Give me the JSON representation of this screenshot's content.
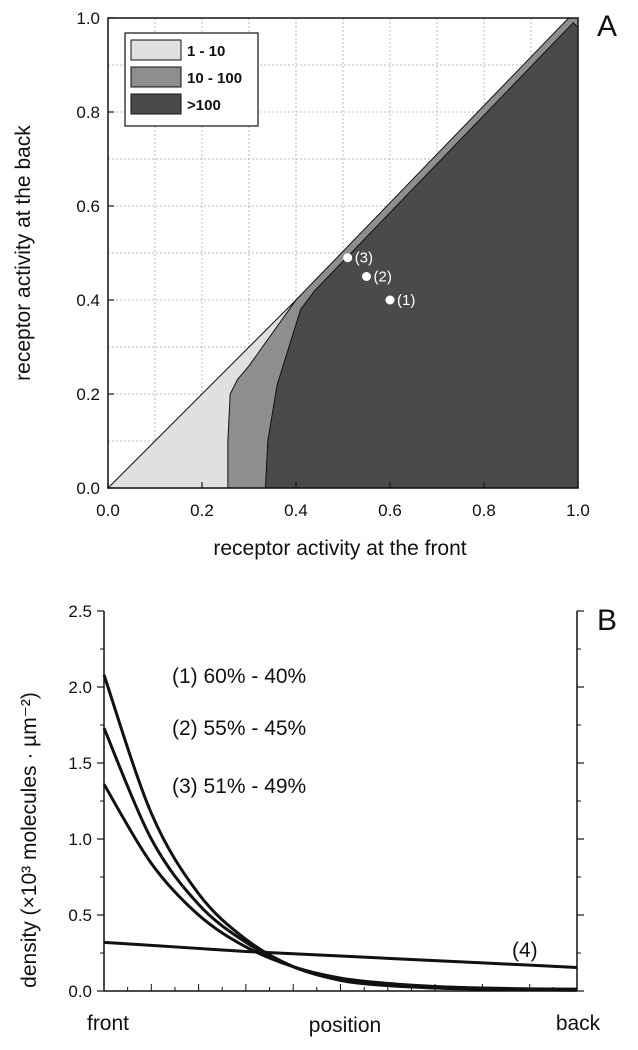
{
  "chart_data": [
    {
      "type": "area",
      "panel_label": "A",
      "xlabel": "receptor activity at the front",
      "ylabel": "receptor activity at the back",
      "xlim": [
        0,
        1
      ],
      "ylim": [
        0,
        1
      ],
      "xticks": [
        "0.0",
        "0.2",
        "0.4",
        "0.6",
        "0.8",
        "1.0"
      ],
      "yticks": [
        "0.0",
        "0.2",
        "0.4",
        "0.6",
        "0.8",
        "1.0"
      ],
      "grid": true,
      "legend_position": "top-left",
      "regions": [
        {
          "name": "1 - 10",
          "color": "#e0e0e0",
          "boundary": [
            [
              0,
              0
            ],
            [
              1,
              1
            ]
          ]
        },
        {
          "name": "10 - 100",
          "color": "#8e8e8e",
          "boundary": [
            [
              0.255,
              0
            ],
            [
              0.255,
              0.1
            ],
            [
              0.26,
              0.2
            ],
            [
              0.275,
              0.23
            ],
            [
              0.3,
              0.26
            ],
            [
              0.4,
              0.4
            ],
            [
              0.98,
              1.0
            ],
            [
              1,
              1
            ]
          ]
        },
        {
          "name": ">100",
          "color": "#4a4a4a",
          "boundary": [
            [
              0.335,
              0
            ],
            [
              0.34,
              0.1
            ],
            [
              0.36,
              0.22
            ],
            [
              0.385,
              0.3
            ],
            [
              0.41,
              0.38
            ],
            [
              0.44,
              0.42
            ],
            [
              0.99,
              0.99
            ],
            [
              1,
              0.98
            ]
          ]
        }
      ],
      "points": [
        {
          "label": "(1)",
          "x": 0.6,
          "y": 0.4
        },
        {
          "label": "(2)",
          "x": 0.55,
          "y": 0.45
        },
        {
          "label": "(3)",
          "x": 0.51,
          "y": 0.49
        }
      ]
    },
    {
      "type": "line",
      "panel_label": "B",
      "xlabel": "position",
      "ylabel": "density (×10³ molecules · µm⁻²)",
      "xtick_labels": [
        "front",
        "back"
      ],
      "xlim": [
        0,
        1
      ],
      "ylim": [
        0,
        2.5
      ],
      "yticks": [
        "0.0",
        "0.5",
        "1.0",
        "1.5",
        "2.0",
        "2.5"
      ],
      "series": [
        {
          "name": "(1) 60% - 40%",
          "x": [
            0,
            0.1,
            0.2,
            0.3,
            0.4,
            0.5,
            0.6,
            0.7,
            0.8,
            0.9,
            1.0
          ],
          "values": [
            2.08,
            1.17,
            0.64,
            0.34,
            0.16,
            0.07,
            0.035,
            0.02,
            0.012,
            0.008,
            0.005
          ]
        },
        {
          "name": "(2) 55% - 45%",
          "x": [
            0,
            0.1,
            0.2,
            0.3,
            0.4,
            0.5,
            0.6,
            0.7,
            0.8,
            0.9,
            1.0
          ],
          "values": [
            1.73,
            1.0,
            0.57,
            0.32,
            0.16,
            0.075,
            0.04,
            0.025,
            0.015,
            0.01,
            0.008
          ]
        },
        {
          "name": "(3) 51% - 49%",
          "x": [
            0,
            0.1,
            0.2,
            0.3,
            0.4,
            0.5,
            0.6,
            0.7,
            0.8,
            0.9,
            1.0
          ],
          "values": [
            1.36,
            0.84,
            0.5,
            0.29,
            0.16,
            0.085,
            0.05,
            0.03,
            0.02,
            0.014,
            0.012
          ]
        },
        {
          "name": "(4)",
          "x": [
            0,
            0.1,
            0.2,
            0.3,
            0.4,
            0.5,
            0.6,
            0.7,
            0.8,
            0.9,
            1.0
          ],
          "values": [
            0.32,
            0.3,
            0.28,
            0.26,
            0.245,
            0.23,
            0.215,
            0.2,
            0.185,
            0.17,
            0.155
          ]
        }
      ],
      "curve_labels": [
        "(1) 60% - 40%",
        "(2) 55% - 45%",
        "(3) 51% - 49%",
        "(4)"
      ]
    }
  ]
}
